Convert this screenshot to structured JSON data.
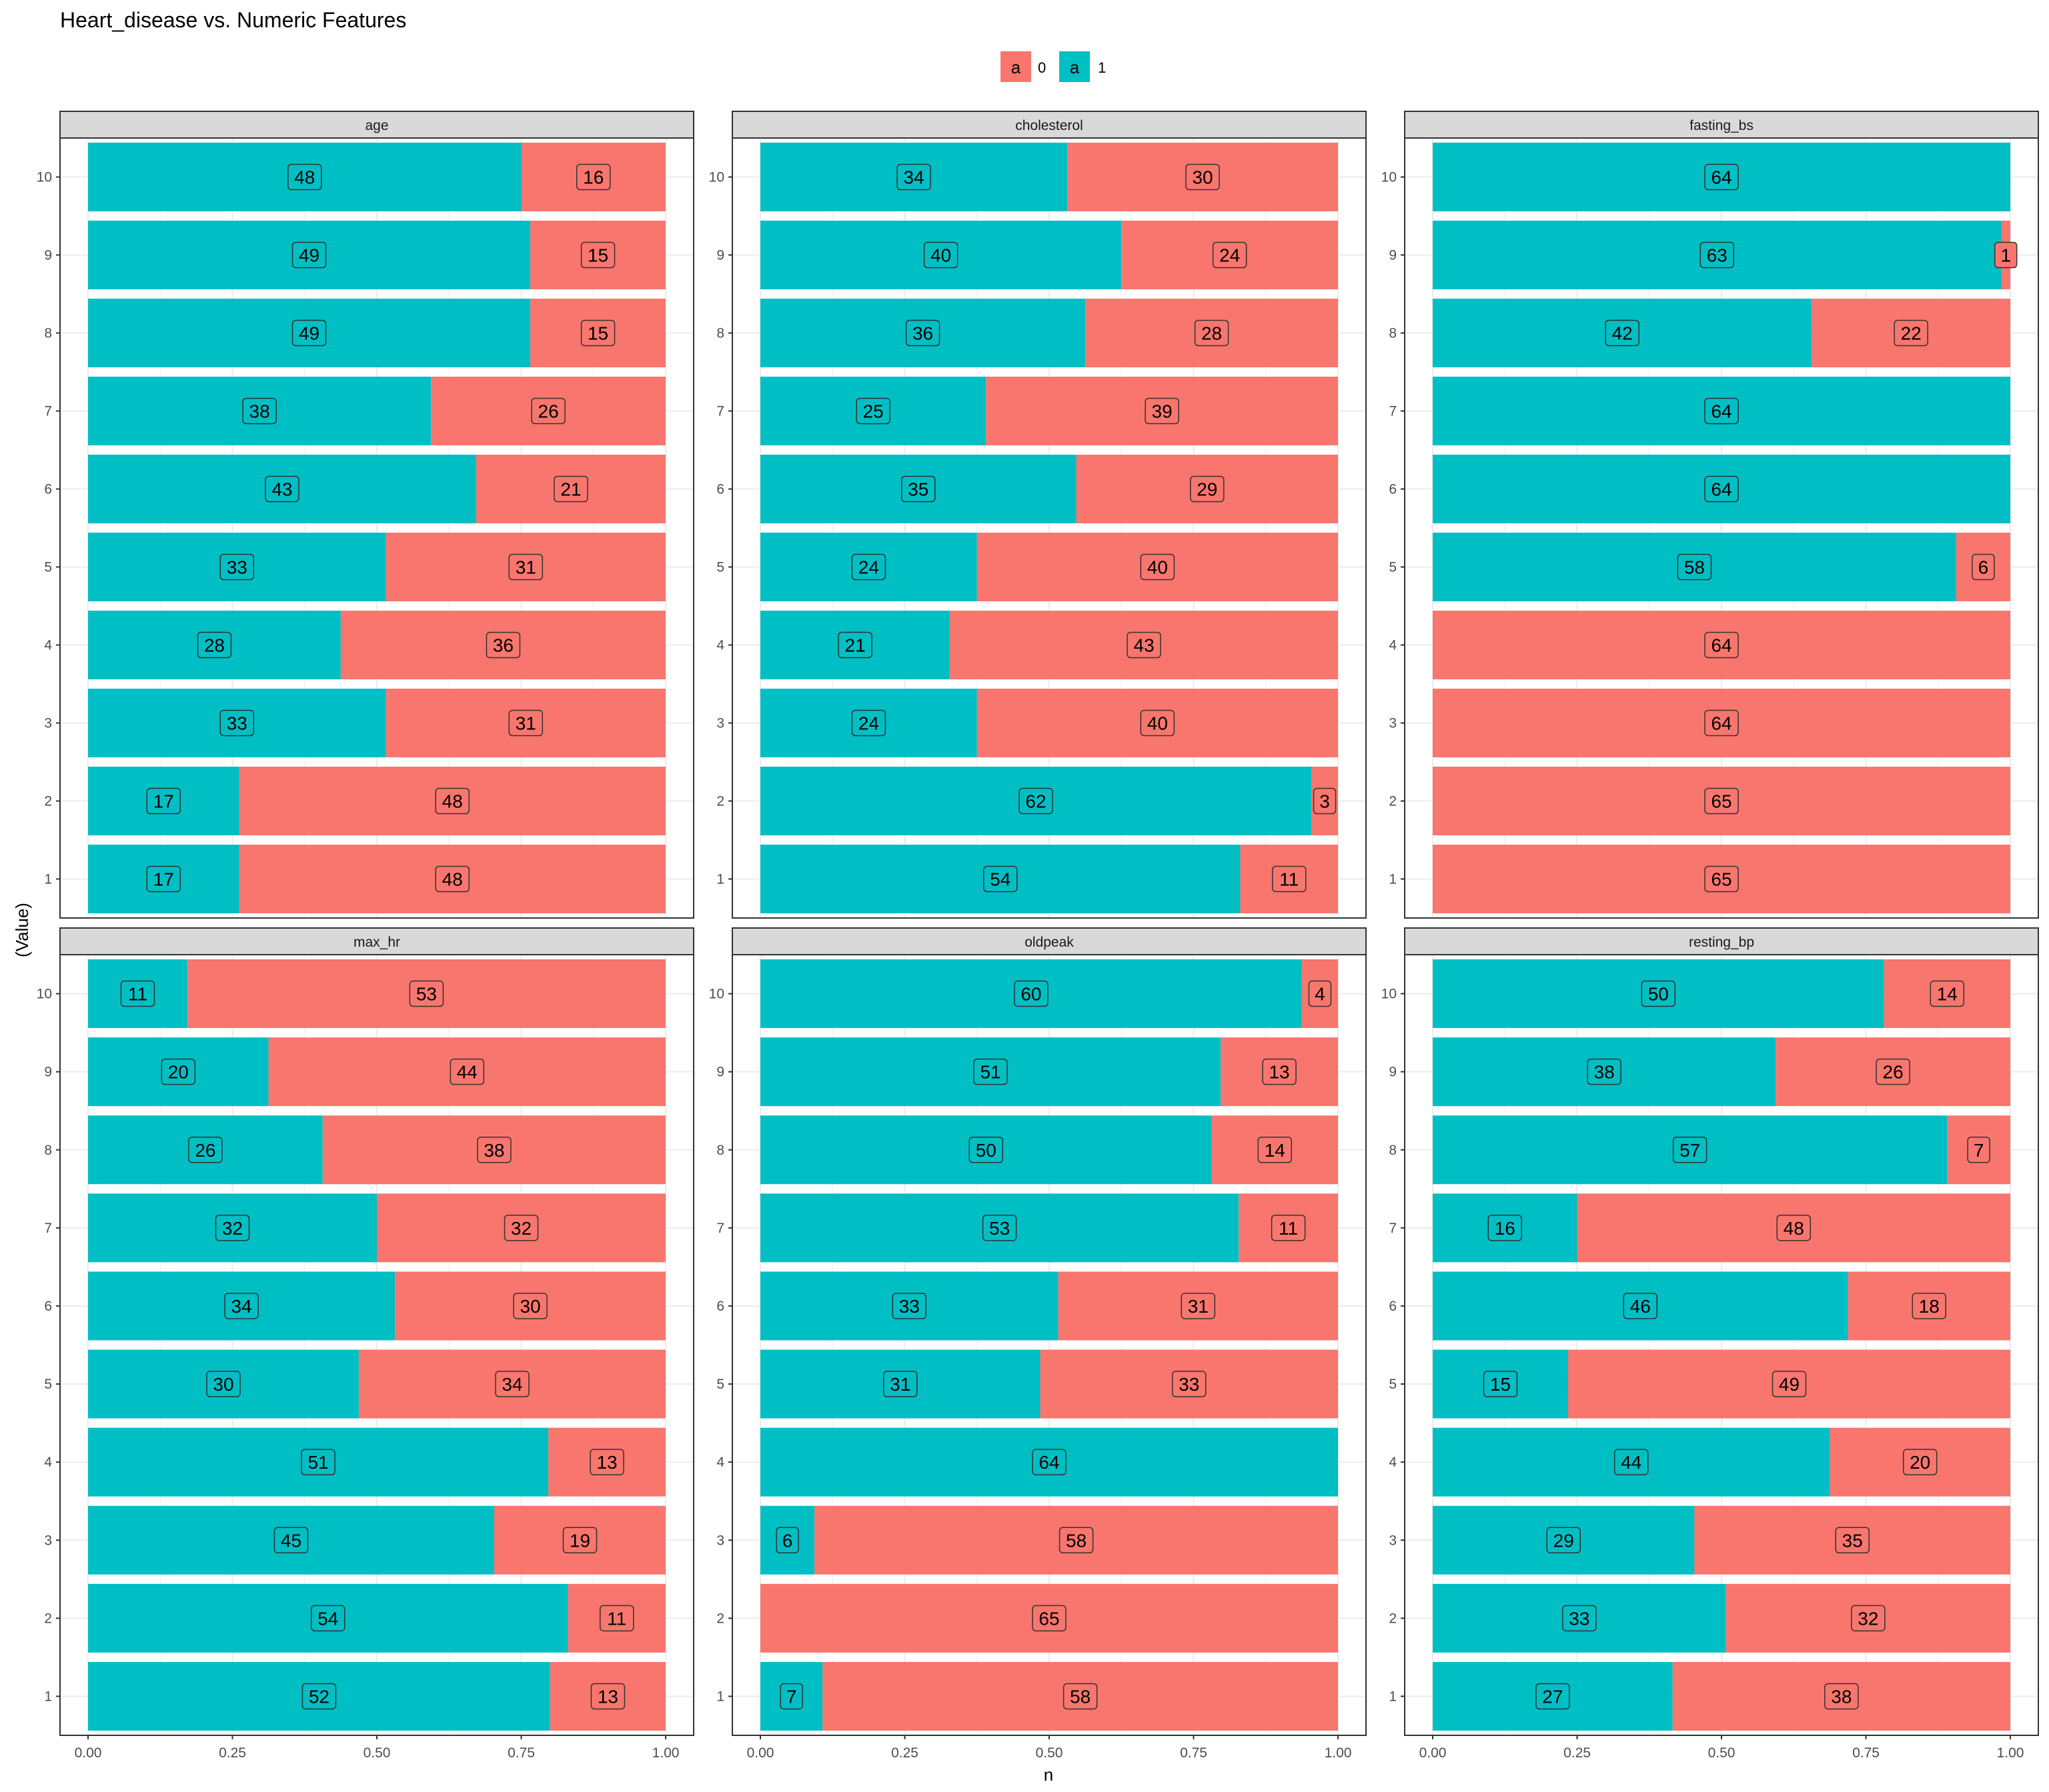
{
  "chart_data": {
    "type": "bar",
    "title": "Heart_disease vs. Numeric Features",
    "xlabel": "n",
    "ylabel": "(Value)",
    "xlim": [
      0,
      1
    ],
    "x_ticks": [
      "0.00",
      "0.25",
      "0.50",
      "0.75",
      "1.00"
    ],
    "y_categories": [
      "1",
      "2",
      "3",
      "4",
      "5",
      "6",
      "7",
      "8",
      "9",
      "10"
    ],
    "orientation": "horizontal",
    "stacked": "fill",
    "grid": true,
    "legend": {
      "placement": "top",
      "key_glyph": "a",
      "items": [
        {
          "name": "0",
          "color": "#F8766D"
        },
        {
          "name": "1",
          "color": "#00BFC4"
        }
      ]
    },
    "facets": [
      {
        "name": "age",
        "one": [
          17,
          17,
          33,
          28,
          33,
          43,
          38,
          49,
          49,
          48
        ],
        "zero": [
          48,
          48,
          31,
          36,
          31,
          21,
          26,
          15,
          15,
          16
        ]
      },
      {
        "name": "cholesterol",
        "one": [
          54,
          62,
          24,
          21,
          24,
          35,
          25,
          36,
          40,
          34
        ],
        "zero": [
          11,
          3,
          40,
          43,
          40,
          29,
          39,
          28,
          24,
          30
        ]
      },
      {
        "name": "fasting_bs",
        "one": [
          0,
          0,
          0,
          0,
          58,
          64,
          64,
          42,
          63,
          64
        ],
        "zero": [
          65,
          65,
          64,
          64,
          6,
          0,
          0,
          22,
          1,
          0
        ]
      },
      {
        "name": "max_hr",
        "one": [
          52,
          54,
          45,
          51,
          30,
          34,
          32,
          26,
          20,
          11
        ],
        "zero": [
          13,
          11,
          19,
          13,
          34,
          30,
          32,
          38,
          44,
          53
        ]
      },
      {
        "name": "oldpeak",
        "one": [
          7,
          0,
          6,
          64,
          31,
          33,
          53,
          50,
          51,
          60
        ],
        "zero": [
          58,
          65,
          58,
          0,
          33,
          31,
          11,
          14,
          13,
          4
        ]
      },
      {
        "name": "resting_bp",
        "one": [
          27,
          33,
          29,
          44,
          15,
          46,
          16,
          57,
          38,
          50
        ],
        "zero": [
          38,
          32,
          35,
          20,
          49,
          18,
          48,
          7,
          26,
          14
        ]
      }
    ]
  }
}
